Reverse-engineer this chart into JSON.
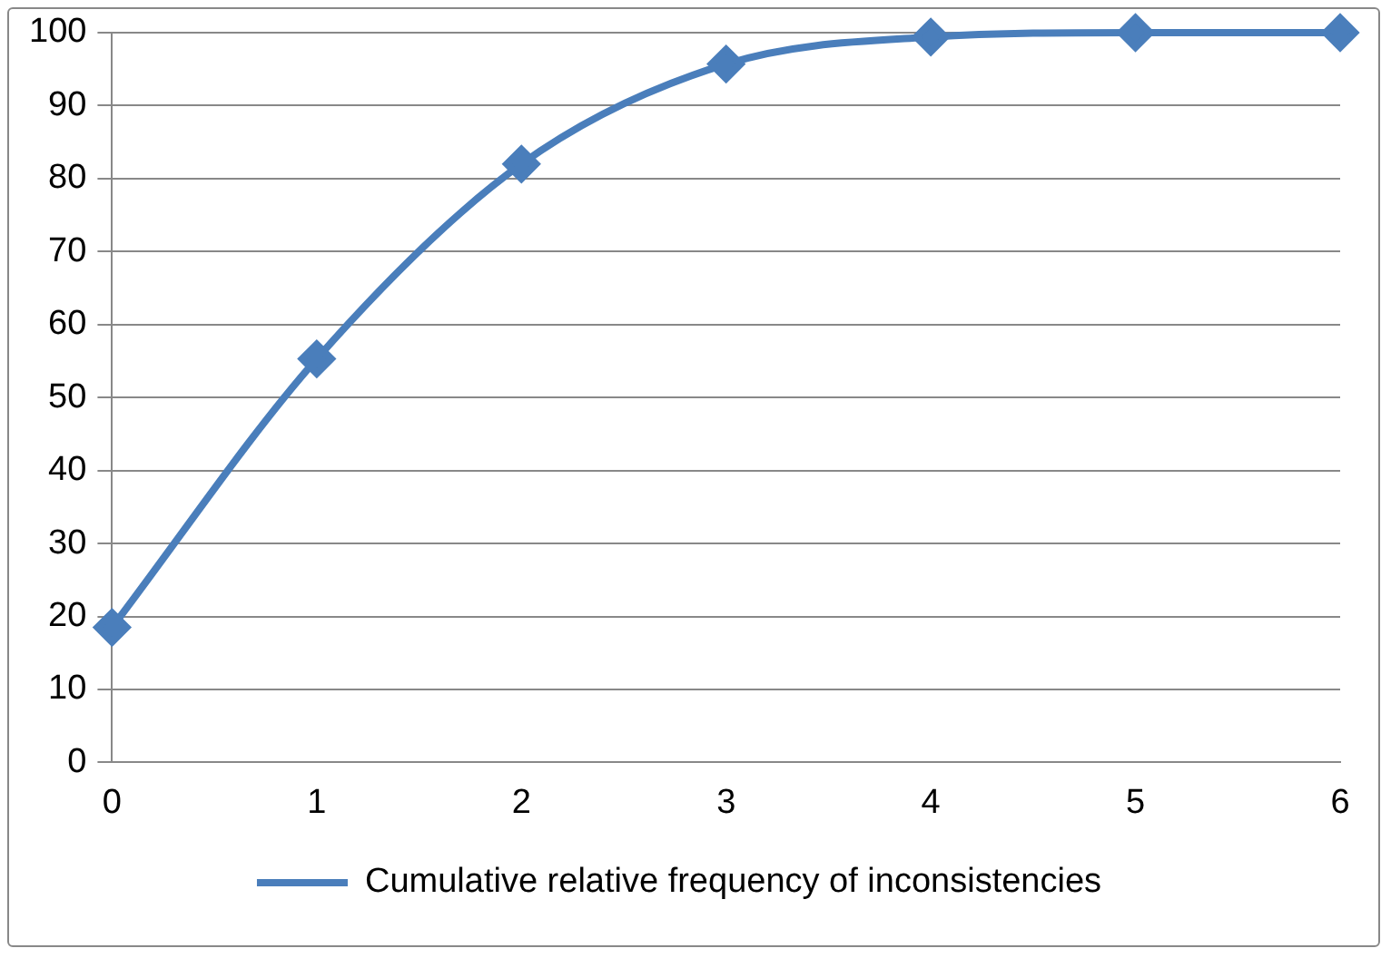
{
  "chart_data": {
    "type": "line",
    "x": [
      0,
      1,
      2,
      3,
      4,
      5,
      6
    ],
    "series": [
      {
        "name": "Cumulative relative frequency of inconsistencies",
        "color": "#4a7ebb",
        "values": [
          18.5,
          55.3,
          82,
          95.7,
          99.4,
          100,
          100
        ]
      }
    ],
    "xlim": [
      0,
      6
    ],
    "xticks": [
      0,
      1,
      2,
      3,
      4,
      5,
      6
    ],
    "ylim": [
      0,
      100
    ],
    "yticks": [
      0,
      10,
      20,
      30,
      40,
      50,
      60,
      70,
      80,
      90,
      100
    ],
    "grid": "y",
    "legend": "bottom",
    "marker": "diamond",
    "line_style": "solid"
  }
}
